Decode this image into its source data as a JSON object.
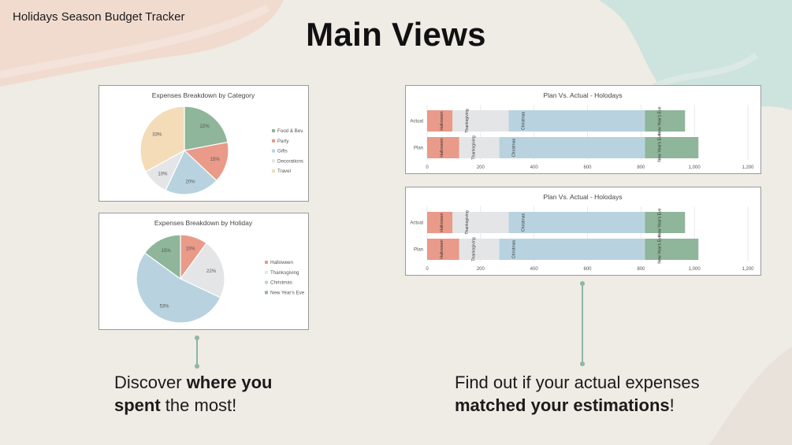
{
  "page": {
    "top_label": "Holidays Season Budget Tracker",
    "title": "Main Views"
  },
  "captions": {
    "left": {
      "pre": "Discover ",
      "bold": "where you spent",
      "post": " the most!"
    },
    "right": {
      "pre": "Find out if your actual expenses ",
      "bold": "matched your estimations",
      "post": "!"
    }
  },
  "colors": {
    "green": "#8fb59a",
    "salmon": "#e99a88",
    "light_gray": "#e3e5e7",
    "blue": "#b8d3df",
    "beige": "#f3dcb7",
    "connector": "#8fb5a8"
  },
  "chart_data": [
    {
      "type": "pie",
      "title": "Expenses Breakdown by Category",
      "categories": [
        "Food & Bev.",
        "Party",
        "Gifts",
        "Decorations",
        "Travel"
      ],
      "values": [
        22,
        15,
        20,
        10,
        33
      ],
      "value_labels": [
        "22%",
        "15%",
        "20%",
        "10%",
        "33%"
      ],
      "colors": [
        "#8fb59a",
        "#e99a88",
        "#b8d3df",
        "#e3e5e7",
        "#f3dcb7"
      ],
      "legend": "right"
    },
    {
      "type": "pie",
      "title": "Expenses Breakdown by Holiday",
      "categories": [
        "Halloween",
        "Thanksgiving",
        "Christmas",
        "New Year's Eve"
      ],
      "values": [
        10,
        22,
        53,
        15
      ],
      "value_labels": [
        "10%",
        "22%",
        "53%",
        "15%"
      ],
      "colors": [
        "#e99a88",
        "#e3e5e7",
        "#b8d3df",
        "#8fb59a"
      ],
      "legend": "right"
    },
    {
      "type": "bar",
      "orientation": "horizontal",
      "stacked": true,
      "title": "Plan Vs. Actual - Holodays",
      "categories": [
        "Actual",
        "Plan"
      ],
      "series": [
        {
          "name": "Halloween",
          "values": [
            95,
            120
          ]
        },
        {
          "name": "Thanksgiving",
          "values": [
            210,
            150
          ]
        },
        {
          "name": "Christmas",
          "values": [
            510,
            545
          ]
        },
        {
          "name": "New Year's Eve",
          "values": [
            150,
            200
          ]
        }
      ],
      "xlim": [
        0,
        1200
      ],
      "xticks": [
        "0",
        "200",
        "400",
        "600",
        "800",
        "1,000",
        "1,200"
      ],
      "grid": true
    },
    {
      "type": "bar",
      "orientation": "horizontal",
      "stacked": true,
      "title": "Plan Vs. Actual - Holodays",
      "categories": [
        "Actual",
        "Plan"
      ],
      "series": [
        {
          "name": "Halloween",
          "values": [
            95,
            120
          ]
        },
        {
          "name": "Thanksgiving",
          "values": [
            210,
            150
          ]
        },
        {
          "name": "Christmas",
          "values": [
            510,
            545
          ]
        },
        {
          "name": "New Year's Eve",
          "values": [
            150,
            200
          ]
        }
      ],
      "xlim": [
        0,
        1200
      ],
      "xticks": [
        "0",
        "200",
        "400",
        "600",
        "800",
        "1,000",
        "1,200"
      ],
      "grid": true
    }
  ]
}
